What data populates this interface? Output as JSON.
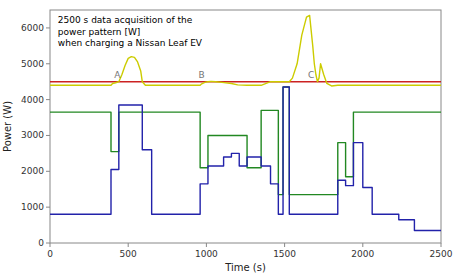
{
  "chart_data": {
    "type": "line",
    "title": "2500 s data acquisition of the\npower pattern [W]\nwhen charging a Nissan Leaf EV",
    "xlabel": "Time (s)",
    "ylabel": "Power (W)",
    "xlim": [
      0,
      2500
    ],
    "ylim": [
      0,
      6500
    ],
    "xticks": [
      0,
      500,
      1000,
      1500,
      2000,
      2500
    ],
    "yticks": [
      0,
      1000,
      2000,
      3000,
      4000,
      5000,
      6000
    ],
    "grid": false,
    "annotations": [
      {
        "x": 430,
        "y": 4580,
        "text": "A"
      },
      {
        "x": 970,
        "y": 4580,
        "text": "B"
      },
      {
        "x": 1670,
        "y": 4580,
        "text": "C"
      }
    ],
    "series": [
      {
        "color": "#cc2222",
        "x": [
          0,
          2500
        ],
        "values": [
          4500,
          4500
        ]
      },
      {
        "color": "#228822",
        "x": [
          0,
          390,
          390,
          440,
          440,
          590,
          590,
          960,
          960,
          1010,
          1010,
          1260,
          1260,
          1350,
          1350,
          1460,
          1460,
          1490,
          1490,
          1530,
          1530,
          1840,
          1840,
          1890,
          1890,
          1940,
          1940,
          2500
        ],
        "values": [
          3650,
          3650,
          2550,
          2550,
          3650,
          3650,
          3650,
          3650,
          2100,
          2100,
          3000,
          3000,
          2100,
          2100,
          3700,
          3700,
          1350,
          1350,
          4350,
          4350,
          1350,
          1350,
          2800,
          2800,
          1850,
          1850,
          3650,
          3650
        ]
      },
      {
        "color": "#cccc00",
        "x": [
          0,
          390,
          400,
          420,
          440,
          460,
          480,
          500,
          520,
          540,
          560,
          580,
          590,
          610,
          650,
          960,
          970,
          990,
          1010,
          1030,
          1060,
          1100,
          1160,
          1200,
          1260,
          1350,
          1410,
          1460,
          1490,
          1510,
          1530,
          1550,
          1580,
          1610,
          1640,
          1660,
          1680,
          1690,
          1700,
          1710,
          1720,
          1730,
          1750,
          1770,
          1800,
          1840,
          1890,
          1940,
          2000,
          2060,
          2230,
          2330,
          2500
        ],
        "values": [
          4400,
          4400,
          4450,
          4470,
          4500,
          4700,
          4950,
          5150,
          5200,
          5180,
          5050,
          4800,
          4500,
          4400,
          4400,
          4400,
          4440,
          4480,
          4500,
          4510,
          4500,
          4480,
          4450,
          4410,
          4400,
          4400,
          4500,
          4500,
          4500,
          4500,
          4500,
          4600,
          5000,
          5800,
          6300,
          6350,
          5500,
          5000,
          4700,
          4500,
          4600,
          5000,
          4700,
          4450,
          4380,
          4400,
          4400,
          4400,
          4400,
          4400,
          4400,
          4400,
          4400
        ]
      },
      {
        "color": "#2222aa",
        "x": [
          0,
          390,
          390,
          440,
          440,
          590,
          590,
          650,
          650,
          960,
          960,
          1010,
          1010,
          1110,
          1110,
          1160,
          1160,
          1210,
          1210,
          1260,
          1260,
          1350,
          1350,
          1410,
          1410,
          1460,
          1460,
          1490,
          1490,
          1530,
          1530,
          1840,
          1840,
          1890,
          1890,
          1940,
          1940,
          2000,
          2000,
          2060,
          2060,
          2230,
          2230,
          2330,
          2330,
          2500
        ],
        "values": [
          800,
          800,
          2050,
          2050,
          3850,
          3850,
          2600,
          2600,
          800,
          800,
          1650,
          1650,
          2150,
          2150,
          2400,
          2400,
          2500,
          2500,
          2150,
          2150,
          2400,
          2400,
          2150,
          2150,
          1650,
          1650,
          800,
          800,
          4350,
          4350,
          800,
          800,
          1750,
          1750,
          1600,
          1600,
          2800,
          2800,
          1550,
          1550,
          800,
          800,
          650,
          650,
          350,
          350
        ]
      }
    ]
  }
}
